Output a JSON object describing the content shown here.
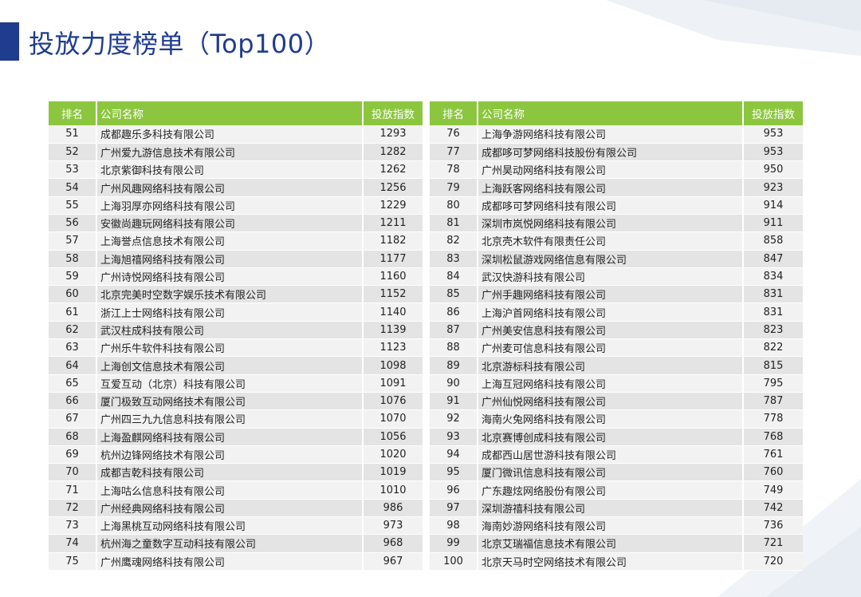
{
  "page": {
    "title": "投放力度榜单（Top100）",
    "accent_color": "#1f3c8f",
    "header_color": "#8cc63f"
  },
  "table_left": {
    "headers": {
      "rank": "排名",
      "company": "公司名称",
      "index": "投放指数"
    },
    "rows": [
      {
        "rank": "51",
        "company": "成都趣乐多科技有限公司",
        "index": "1293"
      },
      {
        "rank": "52",
        "company": "广州爱九游信息技术有限公司",
        "index": "1282"
      },
      {
        "rank": "53",
        "company": "北京紫御科技有限公司",
        "index": "1262"
      },
      {
        "rank": "54",
        "company": "广州风趣网络科技有限公司",
        "index": "1256"
      },
      {
        "rank": "55",
        "company": "上海羽厚亦网络科技有限公司",
        "index": "1229"
      },
      {
        "rank": "56",
        "company": "安徽尚趣玩网络科技有限公司",
        "index": "1211"
      },
      {
        "rank": "57",
        "company": "上海誉点信息技术有限公司",
        "index": "1182"
      },
      {
        "rank": "58",
        "company": "上海旭禧网络科技有限公司",
        "index": "1177"
      },
      {
        "rank": "59",
        "company": "广州诗悦网络科技有限公司",
        "index": "1160"
      },
      {
        "rank": "60",
        "company": "北京完美时空数字娱乐技术有限公司",
        "index": "1152"
      },
      {
        "rank": "61",
        "company": "浙江上士网络科技有限公司",
        "index": "1140"
      },
      {
        "rank": "62",
        "company": "武汉柱成科技有限公司",
        "index": "1139"
      },
      {
        "rank": "63",
        "company": "广州乐牛软件科技有限公司",
        "index": "1123"
      },
      {
        "rank": "64",
        "company": "上海创文信息技术有限公司",
        "index": "1098"
      },
      {
        "rank": "65",
        "company": "互爱互动（北京）科技有限公司",
        "index": "1091"
      },
      {
        "rank": "66",
        "company": "厦门极致互动网络技术有限公司",
        "index": "1076"
      },
      {
        "rank": "67",
        "company": "广州四三九九信息科技有限公司",
        "index": "1070"
      },
      {
        "rank": "68",
        "company": "上海盈麒网络科技有限公司",
        "index": "1056"
      },
      {
        "rank": "69",
        "company": "杭州边锋网络技术有限公司",
        "index": "1020"
      },
      {
        "rank": "70",
        "company": "成都吉乾科技有限公司",
        "index": "1019"
      },
      {
        "rank": "71",
        "company": "上海咕么信息科技有限公司",
        "index": "1010"
      },
      {
        "rank": "72",
        "company": "广州经典网络科技有限公司",
        "index": "986"
      },
      {
        "rank": "73",
        "company": "上海黑桃互动网络科技有限公司",
        "index": "973"
      },
      {
        "rank": "74",
        "company": "杭州海之童数字互动科技有限公司",
        "index": "968"
      },
      {
        "rank": "75",
        "company": "广州鹰魂网络科技有限公司",
        "index": "967"
      }
    ]
  },
  "table_right": {
    "headers": {
      "rank": "排名",
      "company": "公司名称",
      "index": "投放指数"
    },
    "rows": [
      {
        "rank": "76",
        "company": "上海争游网络科技有限公司",
        "index": "953"
      },
      {
        "rank": "77",
        "company": "成都哆可梦网络科技股份有限公司",
        "index": "953"
      },
      {
        "rank": "78",
        "company": "广州昊动网络科技有限公司",
        "index": "950"
      },
      {
        "rank": "79",
        "company": "上海跃客网络科技有限公司",
        "index": "923"
      },
      {
        "rank": "80",
        "company": "成都哆可梦网络科技有限公司",
        "index": "914"
      },
      {
        "rank": "81",
        "company": "深圳市岚悦网络科技有限公司",
        "index": "911"
      },
      {
        "rank": "82",
        "company": "北京壳木软件有限责任公司",
        "index": "858"
      },
      {
        "rank": "83",
        "company": "深圳松鼠游戏网络信息有限公司",
        "index": "847"
      },
      {
        "rank": "84",
        "company": "武汉快游科技有限公司",
        "index": "834"
      },
      {
        "rank": "85",
        "company": "广州手趣网络科技有限公司",
        "index": "831"
      },
      {
        "rank": "86",
        "company": "上海沪首网络科技有限公司",
        "index": "831"
      },
      {
        "rank": "87",
        "company": "广州美安信息科技有限公司",
        "index": "823"
      },
      {
        "rank": "88",
        "company": "广州麦可信息科技有限公司",
        "index": "822"
      },
      {
        "rank": "89",
        "company": "北京游标科技有限公司",
        "index": "815"
      },
      {
        "rank": "90",
        "company": "上海互冠网络科技有限公司",
        "index": "795"
      },
      {
        "rank": "91",
        "company": "广州仙悦网络科技有限公司",
        "index": "787"
      },
      {
        "rank": "92",
        "company": "海南火兔网络科技有限公司",
        "index": "778"
      },
      {
        "rank": "93",
        "company": "北京赛博创成科技有限公司",
        "index": "768"
      },
      {
        "rank": "94",
        "company": "成都西山居世游科技有限公司",
        "index": "761"
      },
      {
        "rank": "95",
        "company": "厦门微讯信息科技有限公司",
        "index": "760"
      },
      {
        "rank": "96",
        "company": "广东趣炫网络股份有限公司",
        "index": "749"
      },
      {
        "rank": "97",
        "company": "深圳游禧科技有限公司",
        "index": "742"
      },
      {
        "rank": "98",
        "company": "海南妙游网络科技有限公司",
        "index": "736"
      },
      {
        "rank": "99",
        "company": "北京艾瑞福信息技术有限公司",
        "index": "721"
      },
      {
        "rank": "100",
        "company": "北京天马时空网络技术有限公司",
        "index": "720"
      }
    ]
  }
}
